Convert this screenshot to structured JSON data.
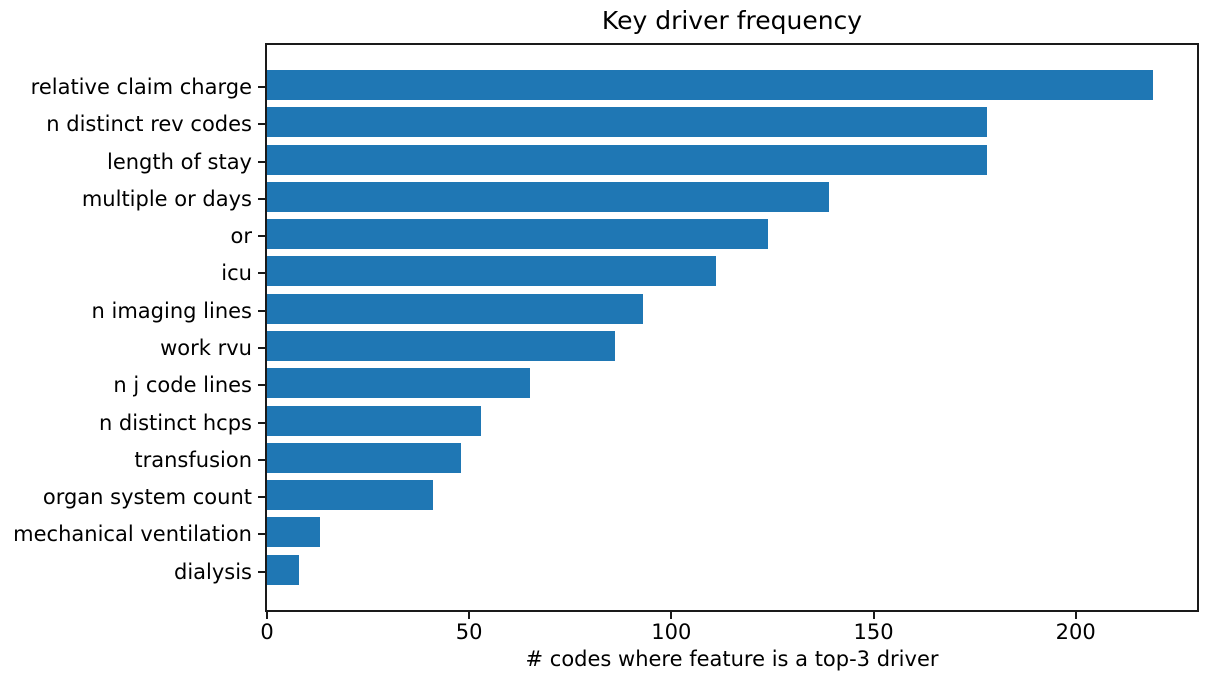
{
  "chart_data": {
    "type": "bar",
    "orientation": "horizontal",
    "title": "Key driver frequency",
    "xlabel": "# codes where feature is a top-3 driver",
    "ylabel": "",
    "categories": [
      "relative claim charge",
      "n distinct rev codes",
      "length of stay",
      "multiple or days",
      "or",
      "icu",
      "n imaging lines",
      "work rvu",
      "n j code lines",
      "n distinct hcps",
      "transfusion",
      "organ system count",
      "mechanical ventilation",
      "dialysis"
    ],
    "values": [
      219,
      178,
      178,
      139,
      124,
      111,
      93,
      86,
      65,
      53,
      48,
      41,
      13,
      8
    ],
    "xlim": [
      0,
      230
    ],
    "xticks": [
      0,
      50,
      100,
      150,
      200
    ],
    "xtick_labels": [
      "0",
      "50",
      "100",
      "150",
      "200"
    ],
    "bar_color": "#1f77b4",
    "axis_color": "#1a1a1a",
    "text_color": "#000000",
    "background_color": "#ffffff",
    "grid": false,
    "legend": null
  }
}
